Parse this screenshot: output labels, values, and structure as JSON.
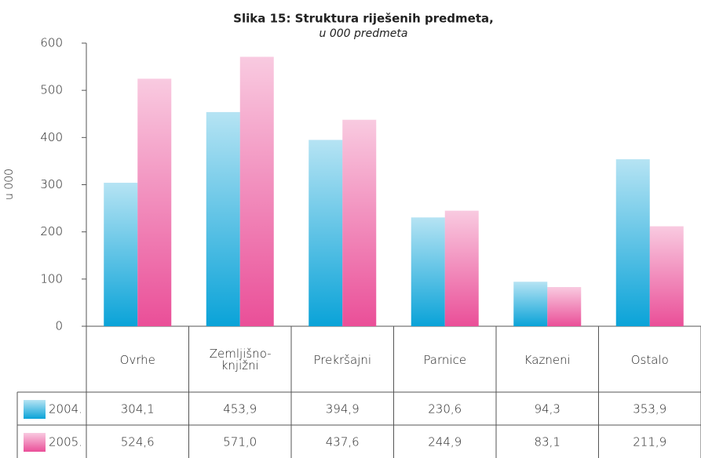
{
  "chart_data": {
    "type": "bar",
    "title": "Slika 15: Struktura riješenih predmeta,",
    "subtitle": "u 000 predmeta",
    "y_label": "u 000",
    "categories": [
      "Ovrhe",
      "Zemljišno-knjižni",
      "Prekršajni",
      "Parnice",
      "Kazneni",
      "Ostalo"
    ],
    "series": [
      {
        "name": "2004.",
        "color": "#0aa3d8",
        "values": [
          304.1,
          453.9,
          394.9,
          230.6,
          94.3,
          353.9
        ],
        "value_labels": [
          "304,1",
          "453,9",
          "394,9",
          "230,6",
          "94,3",
          "353,9"
        ]
      },
      {
        "name": "2005.",
        "color": "#ea4f98",
        "values": [
          524.6,
          571.0,
          437.6,
          244.9,
          83.1,
          211.9
        ],
        "value_labels": [
          "524,6",
          "571,0",
          "437,6",
          "244,9",
          "83,1",
          "211,9"
        ]
      }
    ],
    "ylim": [
      0,
      600
    ],
    "yticks": [
      0,
      100,
      200,
      300,
      400,
      500,
      600
    ],
    "grid": false
  }
}
